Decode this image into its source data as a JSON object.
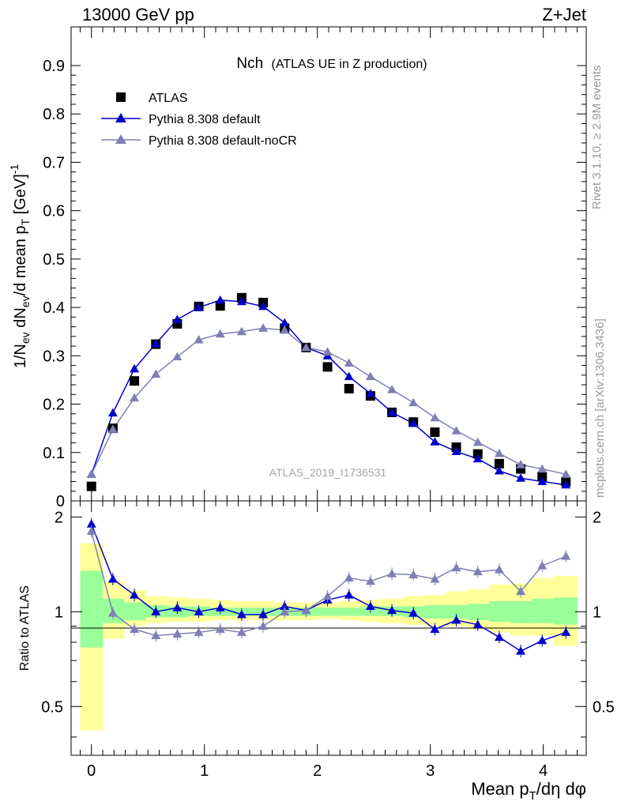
{
  "header": {
    "left": "13000 GeV pp",
    "right": "Z+Jet"
  },
  "plot_title": {
    "main": "Nch",
    "sub": "(ATLAS UE in Z production)"
  },
  "watermark": "ATLAS_2019_I1736531",
  "side_text": {
    "top": "Rivet 3.1.10, ≥ 2.9M events",
    "bottom": "mcplots.cern.ch [arXiv:1306.3436]"
  },
  "colors": {
    "atlas": "#000000",
    "pythia": "#0000cc",
    "nocr": "#7f7fb5",
    "band_inner": "#99ff99",
    "band_outer": "#ffff99"
  },
  "chart_data": [
    {
      "type": "scatter",
      "ylabel": "1/N_ev dN_ev/d mean p_T [GeV]^-1",
      "xlim": [
        -0.18,
        4.38
      ],
      "ylim": [
        0,
        0.98
      ],
      "yticks": [
        "0",
        "0.1",
        "0.2",
        "0.3",
        "0.4",
        "0.5",
        "0.6",
        "0.7",
        "0.8",
        "0.9"
      ],
      "x": [
        0.0,
        0.19,
        0.38,
        0.57,
        0.76,
        0.95,
        1.14,
        1.33,
        1.52,
        1.71,
        1.9,
        2.09,
        2.28,
        2.47,
        2.66,
        2.85,
        3.04,
        3.23,
        3.42,
        3.61,
        3.8,
        3.99,
        4.2
      ],
      "series": [
        {
          "name": "ATLAS",
          "marker": "square",
          "values": [
            0.03,
            0.15,
            0.248,
            0.324,
            0.366,
            0.402,
            0.403,
            0.42,
            0.41,
            0.357,
            0.317,
            0.277,
            0.232,
            0.217,
            0.183,
            0.163,
            0.142,
            0.111,
            0.097,
            0.077,
            0.066,
            0.05,
            0.04
          ]
        },
        {
          "name": "Pythia 8.308 default",
          "marker": "triangle",
          "values": [
            0.055,
            0.182,
            0.273,
            0.325,
            0.375,
            0.4,
            0.415,
            0.412,
            0.402,
            0.368,
            0.317,
            0.3,
            0.257,
            0.222,
            0.183,
            0.16,
            0.122,
            0.102,
            0.087,
            0.062,
            0.047,
            0.04,
            0.033
          ]
        },
        {
          "name": "Pythia 8.308 default-noCR",
          "marker": "triangle",
          "values": [
            0.055,
            0.148,
            0.213,
            0.262,
            0.298,
            0.333,
            0.345,
            0.35,
            0.357,
            0.353,
            0.317,
            0.308,
            0.285,
            0.257,
            0.23,
            0.203,
            0.172,
            0.145,
            0.121,
            0.098,
            0.075,
            0.066,
            0.055
          ]
        }
      ]
    },
    {
      "type": "line",
      "ylabel": "Ratio to ATLAS",
      "xlabel": "Mean p_T/dη dφ",
      "xlim": [
        -0.18,
        4.38
      ],
      "ylim": [
        0.35,
        2.25
      ],
      "yticks": [
        "0.5",
        "1",
        "2"
      ],
      "xticks": [
        "0",
        "1",
        "2",
        "3",
        "4"
      ],
      "x": [
        0.0,
        0.19,
        0.38,
        0.57,
        0.76,
        0.95,
        1.14,
        1.33,
        1.52,
        1.71,
        1.9,
        2.09,
        2.28,
        2.47,
        2.66,
        2.85,
        3.04,
        3.23,
        3.42,
        3.61,
        3.8,
        3.99,
        4.2
      ],
      "bin_edges": [
        -0.1,
        0.1,
        0.29,
        0.48,
        0.67,
        0.86,
        1.05,
        1.24,
        1.43,
        1.62,
        1.81,
        2.0,
        2.19,
        2.38,
        2.57,
        2.76,
        2.95,
        3.14,
        3.33,
        3.52,
        3.71,
        3.9,
        4.09,
        4.3
      ],
      "band_inner": {
        "lo": [
          0.77,
          0.92,
          0.94,
          0.96,
          0.96,
          0.97,
          0.97,
          0.97,
          0.97,
          0.97,
          0.97,
          0.97,
          0.97,
          0.97,
          0.97,
          0.96,
          0.95,
          0.95,
          0.94,
          0.93,
          0.92,
          0.92,
          0.91
        ],
        "hi": [
          1.35,
          1.1,
          1.07,
          1.05,
          1.04,
          1.04,
          1.03,
          1.03,
          1.03,
          1.03,
          1.03,
          1.03,
          1.03,
          1.04,
          1.04,
          1.04,
          1.05,
          1.05,
          1.06,
          1.08,
          1.08,
          1.1,
          1.11
        ]
      },
      "band_outer": {
        "lo": [
          0.42,
          0.82,
          0.9,
          0.92,
          0.93,
          0.93,
          0.94,
          0.94,
          0.94,
          0.94,
          0.94,
          0.95,
          0.94,
          0.93,
          0.92,
          0.91,
          0.9,
          0.9,
          0.88,
          0.86,
          0.84,
          0.84,
          0.78
        ],
        "hi": [
          1.65,
          1.25,
          1.17,
          1.12,
          1.11,
          1.1,
          1.09,
          1.08,
          1.08,
          1.07,
          1.07,
          1.07,
          1.08,
          1.09,
          1.1,
          1.12,
          1.13,
          1.16,
          1.18,
          1.22,
          1.23,
          1.28,
          1.3
        ]
      },
      "series": [
        {
          "name": "Pythia 8.308 default",
          "values": [
            1.9,
            1.27,
            1.13,
            1.0,
            1.03,
            1.0,
            1.03,
            0.98,
            0.98,
            1.04,
            1.01,
            1.09,
            1.13,
            1.04,
            1.01,
            0.99,
            0.88,
            0.94,
            0.91,
            0.83,
            0.75,
            0.81,
            0.86
          ]
        },
        {
          "name": "Pythia 8.308 default-noCR",
          "values": [
            1.8,
            0.99,
            0.88,
            0.84,
            0.85,
            0.86,
            0.88,
            0.86,
            0.9,
            1.0,
            1.01,
            1.12,
            1.28,
            1.25,
            1.32,
            1.31,
            1.27,
            1.38,
            1.34,
            1.36,
            1.16,
            1.4,
            1.5
          ]
        }
      ]
    }
  ]
}
